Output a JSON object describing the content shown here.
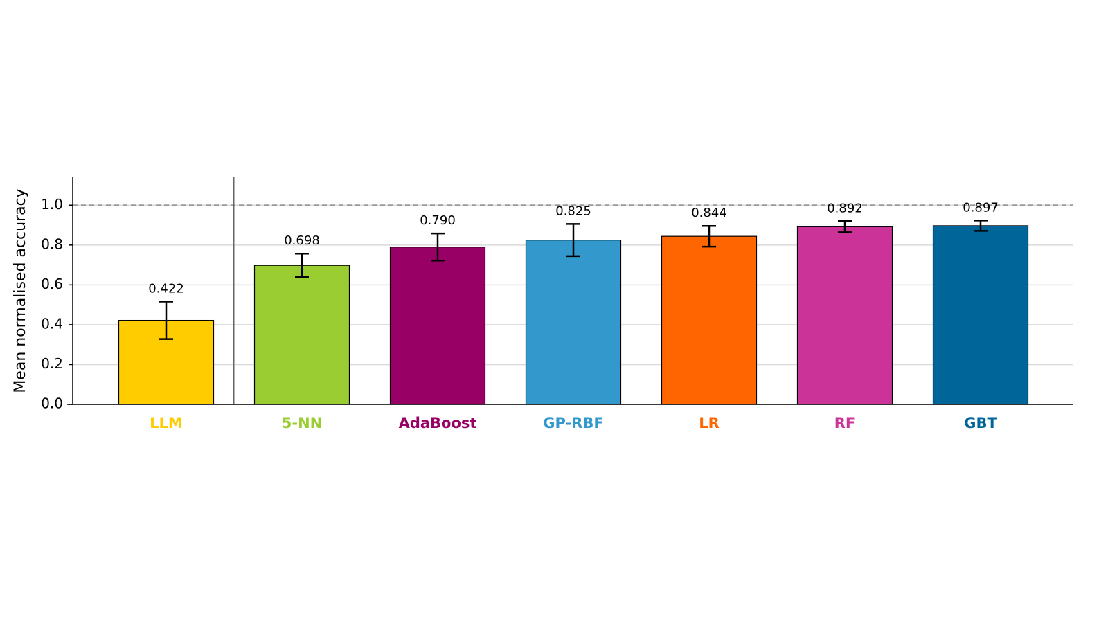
{
  "chart_data": {
    "type": "bar",
    "y_label": "Mean normalised accuracy",
    "categories": [
      "LLM",
      "5-NN",
      "AdaBoost",
      "GP-RBF",
      "LR",
      "RF",
      "GBT"
    ],
    "values": [
      0.422,
      0.698,
      0.79,
      0.825,
      0.844,
      0.892,
      0.897
    ],
    "value_labels": [
      "0.422",
      "0.698",
      "0.790",
      "0.825",
      "0.844",
      "0.892",
      "0.897"
    ],
    "errors": [
      0.094,
      0.059,
      0.068,
      0.081,
      0.052,
      0.028,
      0.026
    ],
    "colors": [
      "#ffcc00",
      "#9acd32",
      "#990066",
      "#3399cc",
      "#ff6600",
      "#cc3399",
      "#006699"
    ],
    "reference_line": 1,
    "ylim": [
      0,
      1.14
    ],
    "yticks": [
      {
        "value": 0,
        "label": "0.0"
      },
      0.2,
      0.4,
      0.6,
      0.8,
      {
        "value": 1,
        "label": "1.0"
      }
    ],
    "grid": true
  }
}
